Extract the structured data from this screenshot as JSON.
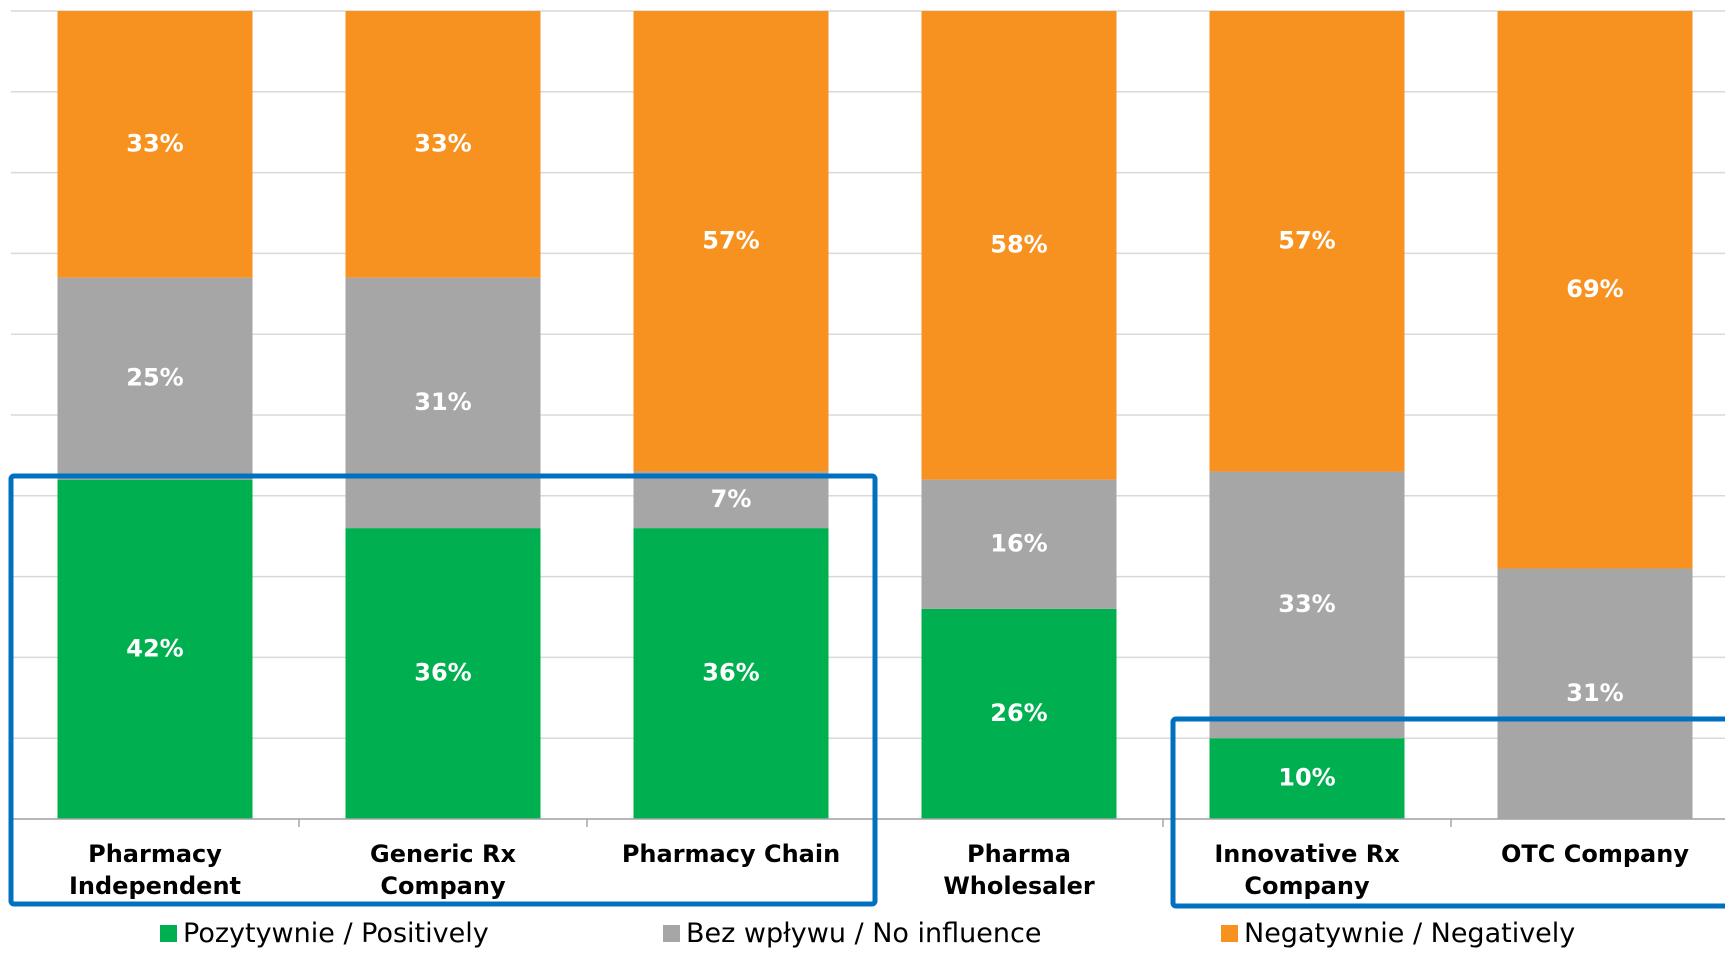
{
  "chart_data": {
    "type": "stacked_bar",
    "categories": [
      "Pharmacy Independent",
      "Generic Rx Company",
      "Pharmacy Chain",
      "Pharma Wholesaler",
      "Innovative Rx Company",
      "OTC Company"
    ],
    "series": [
      {
        "name": "Pozytywnie / Positively",
        "color": "#00b050",
        "values": [
          42,
          36,
          36,
          26,
          10,
          0
        ]
      },
      {
        "name": "Bez wpływu / No influence",
        "color": "#a6a6a6",
        "values": [
          25,
          31,
          7,
          16,
          33,
          31
        ]
      },
      {
        "name": "Negatywnie / Negatively",
        "color": "#f79221",
        "values": [
          33,
          33,
          57,
          58,
          57,
          69
        ]
      }
    ],
    "ylim": [
      0,
      100
    ],
    "yticks": [
      0,
      10,
      20,
      30,
      40,
      50,
      60,
      70,
      80,
      90,
      100
    ],
    "grid": true,
    "legend": "bottom"
  }
}
